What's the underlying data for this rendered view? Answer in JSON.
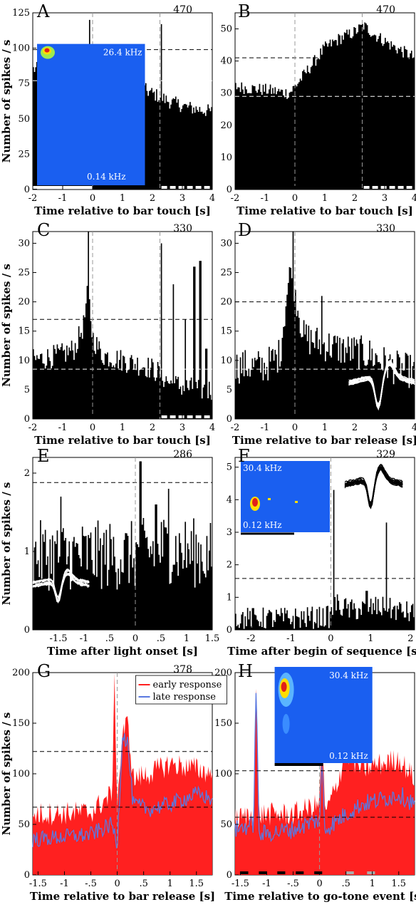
{
  "figure": {
    "ylabel": "Number of spikes  / s",
    "colors": {
      "bars": "#000000",
      "early": "#ff2020",
      "late": "#5a78e0",
      "inset_bg": "#1a5ff0",
      "axis": "#000000"
    }
  },
  "chart_data": [
    {
      "panel": "A",
      "type": "bar",
      "count": "470",
      "xlabel": "Time relative to bar touch [s]",
      "xlim": [
        -2,
        4
      ],
      "ylim": [
        0,
        125
      ],
      "xticks": [
        -2,
        -1,
        0,
        1,
        2,
        3,
        4
      ],
      "xticklabels": [
        "-2",
        "-1",
        "0",
        "1",
        "2",
        "3",
        "4"
      ],
      "yticks": [
        0,
        25,
        50,
        75,
        100,
        125
      ],
      "yticklabels": [
        "0",
        "25",
        "50",
        "75",
        "100",
        "125"
      ],
      "profile": [
        [
          -2,
          85
        ],
        [
          -1.5,
          86
        ],
        [
          -0.5,
          84
        ],
        [
          -0.05,
          86
        ],
        [
          0,
          90
        ],
        [
          0.5,
          87
        ],
        [
          1.2,
          78
        ],
        [
          1.8,
          70
        ],
        [
          2.2,
          66
        ],
        [
          2.6,
          62
        ],
        [
          3.2,
          58
        ],
        [
          4,
          55
        ]
      ],
      "spikes": [
        [
          -0.1,
          120
        ],
        [
          2.3,
          117
        ]
      ],
      "noise": 5,
      "hlines": [
        99,
        77
      ],
      "vlines": [
        0,
        2.25
      ],
      "inset": {
        "type": "heatmap",
        "top_label": "26.4 kHz",
        "bottom_label": "0.14 kHz"
      },
      "event_bars": [
        {
          "x0": -2,
          "x1": 0,
          "color": "#ffffff"
        },
        {
          "x0": 2.3,
          "x1": 4,
          "color": "#ffffff",
          "dashed": true
        }
      ]
    },
    {
      "panel": "B",
      "type": "bar",
      "count": "470",
      "xlabel": "Time relative to bar touch [s]",
      "xlim": [
        -2,
        4
      ],
      "ylim": [
        0,
        55
      ],
      "xticks": [
        -2,
        -1,
        0,
        1,
        2,
        3,
        4
      ],
      "xticklabels": [
        "-2",
        "-1",
        "0",
        "1",
        "2",
        "3",
        "4"
      ],
      "yticks": [
        0,
        10,
        20,
        30,
        40,
        50
      ],
      "yticklabels": [
        "0",
        "10",
        "20",
        "30",
        "40",
        "50"
      ],
      "profile": [
        [
          -2,
          32
        ],
        [
          -1,
          31
        ],
        [
          -0.2,
          30
        ],
        [
          0,
          32
        ],
        [
          0.5,
          38
        ],
        [
          1,
          44
        ],
        [
          1.5,
          47
        ],
        [
          2,
          49
        ],
        [
          2.3,
          51
        ],
        [
          2.7,
          48
        ],
        [
          3.2,
          45
        ],
        [
          4,
          41
        ]
      ],
      "spikes": [],
      "noise": 2,
      "hlines": [
        41,
        29
      ],
      "vlines": [
        0,
        2.25
      ],
      "event_bars": [
        {
          "x0": 2.3,
          "x1": 4,
          "color": "#ffffff",
          "dashed": true
        }
      ]
    },
    {
      "panel": "C",
      "type": "bar",
      "count": "330",
      "xlabel": "Time relative to bar touch [s]",
      "xlim": [
        -2,
        4
      ],
      "ylim": [
        0,
        32
      ],
      "xticks": [
        -2,
        -1,
        0,
        1,
        2,
        3,
        4
      ],
      "xticklabels": [
        "-2",
        "-1",
        "0",
        "1",
        "2",
        "3",
        "4"
      ],
      "yticks": [
        0,
        5,
        10,
        15,
        20,
        25,
        30
      ],
      "yticklabels": [
        "0",
        "5",
        "10",
        "15",
        "20",
        "25",
        "30"
      ],
      "profile": [
        [
          -2,
          10
        ],
        [
          -1,
          11
        ],
        [
          -0.6,
          12
        ],
        [
          -0.3,
          16
        ],
        [
          -0.15,
          22
        ],
        [
          0,
          14
        ],
        [
          0.3,
          11
        ],
        [
          1,
          10
        ],
        [
          1.8,
          9
        ],
        [
          2.2,
          8
        ],
        [
          2.6,
          6
        ],
        [
          3.5,
          5
        ],
        [
          4,
          5
        ]
      ],
      "spikes": [
        [
          -0.15,
          32
        ],
        [
          2.3,
          30
        ],
        [
          2.7,
          23
        ],
        [
          3.1,
          17
        ],
        [
          3.4,
          26
        ],
        [
          3.6,
          27
        ],
        [
          3.8,
          12
        ]
      ],
      "noise": 2,
      "hlines": [
        17,
        8.5
      ],
      "vlines": [
        0,
        2.25
      ],
      "event_bars": [
        {
          "x0": 2.3,
          "x1": 4,
          "color": "#ffffff",
          "dashed": true
        }
      ]
    },
    {
      "panel": "D",
      "type": "bar",
      "count": "330",
      "xlabel": "Time relative to bar release [s]",
      "xlim": [
        -2,
        4
      ],
      "ylim": [
        0,
        32
      ],
      "xticks": [
        -2,
        -1,
        0,
        1,
        2,
        3,
        4
      ],
      "xticklabels": [
        "-2",
        "-1",
        "0",
        "1",
        "2",
        "3",
        "4"
      ],
      "yticks": [
        0,
        5,
        10,
        15,
        20,
        25,
        30
      ],
      "yticklabels": [
        "0",
        "5",
        "10",
        "15",
        "20",
        "25",
        "30"
      ],
      "profile": [
        [
          -2,
          9
        ],
        [
          -1,
          9
        ],
        [
          -0.5,
          11
        ],
        [
          -0.3,
          20
        ],
        [
          -0.1,
          27
        ],
        [
          0,
          22
        ],
        [
          0.3,
          14
        ],
        [
          0.8,
          13
        ],
        [
          1.5,
          12
        ],
        [
          2.5,
          11
        ],
        [
          3.2,
          9
        ],
        [
          4,
          8
        ]
      ],
      "spikes": [
        [
          -0.05,
          32
        ],
        [
          0.9,
          21
        ]
      ],
      "noise": 3,
      "hlines": [
        20,
        8.5
      ],
      "vlines": [
        0
      ],
      "inset": {
        "type": "waveform"
      }
    },
    {
      "panel": "E",
      "type": "bar",
      "count": "286",
      "xlabel": "Time after light onset [s]",
      "xlim": [
        -2,
        1.5
      ],
      "ylim": [
        0,
        2.2
      ],
      "xticks": [
        -1.5,
        -1,
        -0.5,
        0,
        0.5,
        1,
        1.5
      ],
      "xticklabels": [
        "-1.5",
        "-1",
        ".5",
        "0",
        ".5",
        "1",
        "1.5"
      ],
      "yticks": [
        0,
        1,
        2
      ],
      "yticklabels": [
        "0",
        "1",
        "2"
      ],
      "profile": [
        [
          -2,
          0.95
        ],
        [
          -1,
          0.95
        ],
        [
          0,
          0.95
        ],
        [
          0.5,
          1.05
        ],
        [
          1,
          1.0
        ],
        [
          1.5,
          0.95
        ]
      ],
      "spikes": [
        [
          0.1,
          2.15
        ],
        [
          0.65,
          1.8
        ],
        [
          0.4,
          1.6
        ],
        [
          -1.45,
          1.7
        ]
      ],
      "noise": 0.45,
      "hlines": [
        1.88
      ],
      "vlines": [
        0
      ],
      "inset": {
        "type": "waveform"
      }
    },
    {
      "panel": "F",
      "type": "bar",
      "count": "329",
      "xlabel": "Time after begin of sequence [s]",
      "xlim": [
        -2.4,
        2.1
      ],
      "ylim": [
        0,
        5.3
      ],
      "xticks": [
        -2,
        -1,
        0,
        1,
        2
      ],
      "xticklabels": [
        "-2",
        "-1",
        "0",
        "1",
        "2"
      ],
      "yticks": [
        0,
        1,
        2,
        3,
        4,
        5
      ],
      "yticklabels": [
        "0",
        "1",
        "2",
        "3",
        "4",
        "5"
      ],
      "profile": [
        [
          -2.4,
          0.35
        ],
        [
          -1,
          0.35
        ],
        [
          0,
          0.4
        ],
        [
          0.1,
          0.8
        ],
        [
          0.5,
          0.6
        ],
        [
          1.2,
          0.7
        ],
        [
          2.1,
          0.5
        ]
      ],
      "spikes": [
        [
          0.08,
          4.3
        ],
        [
          1.4,
          3.3
        ],
        [
          0.9,
          1.2
        ]
      ],
      "noise": 0.35,
      "hlines": [
        1.58
      ],
      "vlines": [
        0
      ],
      "inset": {
        "type": "heatmap+waveform",
        "top_label": "30.4 kHz",
        "bottom_label": "0.12 kHz"
      }
    },
    {
      "panel": "G",
      "type": "area",
      "count": "378",
      "xlabel": "Time relative to bar release [s]",
      "xlim": [
        -1.6,
        1.8
      ],
      "ylim": [
        0,
        200
      ],
      "xticks": [
        -1.5,
        -1,
        -0.5,
        0,
        0.5,
        1,
        1.5
      ],
      "xticklabels": [
        "-1.5",
        "-1",
        "-.5",
        "0",
        ".5",
        "1",
        "1.5"
      ],
      "yticks": [
        0,
        50,
        100,
        150,
        200
      ],
      "yticklabels": [
        "0",
        "50",
        "100",
        "150",
        "200"
      ],
      "series": [
        {
          "name": "early response",
          "profile": [
            [
              -1.6,
              60
            ],
            [
              -0.5,
              62
            ],
            [
              -0.1,
              80
            ],
            [
              -0.05,
              190
            ],
            [
              0,
              70
            ],
            [
              0.1,
              140
            ],
            [
              0.2,
              150
            ],
            [
              0.3,
              95
            ],
            [
              0.6,
              100
            ],
            [
              1,
              110
            ],
            [
              1.5,
              105
            ],
            [
              1.8,
              100
            ]
          ],
          "noise": 12
        },
        {
          "name": "late response",
          "profile": [
            [
              -1.6,
              35
            ],
            [
              -0.5,
              40
            ],
            [
              -0.1,
              50
            ],
            [
              0,
              30
            ],
            [
              0.1,
              140
            ],
            [
              0.2,
              130
            ],
            [
              0.3,
              70
            ],
            [
              0.6,
              65
            ],
            [
              1,
              70
            ],
            [
              1.5,
              80
            ],
            [
              1.8,
              75
            ]
          ],
          "noise": 8
        }
      ],
      "legend": {
        "placement": "top-right"
      },
      "hlines": [
        122,
        67
      ],
      "vlines": [
        0
      ]
    },
    {
      "panel": "H",
      "type": "area",
      "xlabel": "Time relative to go-tone event [s]",
      "xlim": [
        -1.6,
        1.8
      ],
      "ylim": [
        0,
        200
      ],
      "xticks": [
        -1.5,
        -1,
        -0.5,
        0,
        0.5,
        1,
        1.5
      ],
      "xticklabels": [
        "-1.5",
        "-1",
        "-.5",
        "0",
        ".5",
        "1",
        "1.5"
      ],
      "yticks": [
        0,
        50,
        100,
        150,
        200
      ],
      "yticklabels": [
        "0",
        "50",
        "100",
        "150",
        "200"
      ],
      "series": [
        {
          "name": "early response",
          "profile": [
            [
              -1.6,
              55
            ],
            [
              -1.25,
              60
            ],
            [
              -1.2,
              195
            ],
            [
              -1.15,
              60
            ],
            [
              -0.5,
              60
            ],
            [
              0,
              70
            ],
            [
              0.05,
              145
            ],
            [
              0.1,
              60
            ],
            [
              0.3,
              85
            ],
            [
              0.5,
              120
            ],
            [
              0.8,
              105
            ],
            [
              1.2,
              110
            ],
            [
              1.5,
              115
            ],
            [
              1.8,
              95
            ]
          ],
          "noise": 12
        },
        {
          "name": "late response",
          "profile": [
            [
              -1.6,
              45
            ],
            [
              -1.25,
              50
            ],
            [
              -1.2,
              195
            ],
            [
              -1.15,
              40
            ],
            [
              -0.5,
              45
            ],
            [
              0,
              55
            ],
            [
              0.05,
              110
            ],
            [
              0.1,
              45
            ],
            [
              0.5,
              60
            ],
            [
              0.8,
              70
            ],
            [
              1.2,
              75
            ],
            [
              1.5,
              80
            ],
            [
              1.8,
              70
            ]
          ],
          "noise": 9
        }
      ],
      "hlines": [
        103,
        57
      ],
      "vlines": [
        0
      ],
      "inset": {
        "type": "heatmap",
        "top_label": "30.4 kHz",
        "bottom_label": "0.12 kHz"
      },
      "event_bars": [
        {
          "x0": -1.5,
          "x1": -1.35,
          "color": "#000000"
        },
        {
          "x0": -1.15,
          "x1": -1.0,
          "color": "#000000"
        },
        {
          "x0": -0.8,
          "x1": -0.65,
          "color": "#000000"
        },
        {
          "x0": -0.45,
          "x1": -0.3,
          "color": "#000000"
        },
        {
          "x0": -0.1,
          "x1": 0.05,
          "color": "#000000"
        },
        {
          "x0": 0.5,
          "x1": 0.65,
          "color": "#aaaaaa"
        },
        {
          "x0": 0.9,
          "x1": 1.05,
          "color": "#aaaaaa"
        }
      ]
    }
  ]
}
